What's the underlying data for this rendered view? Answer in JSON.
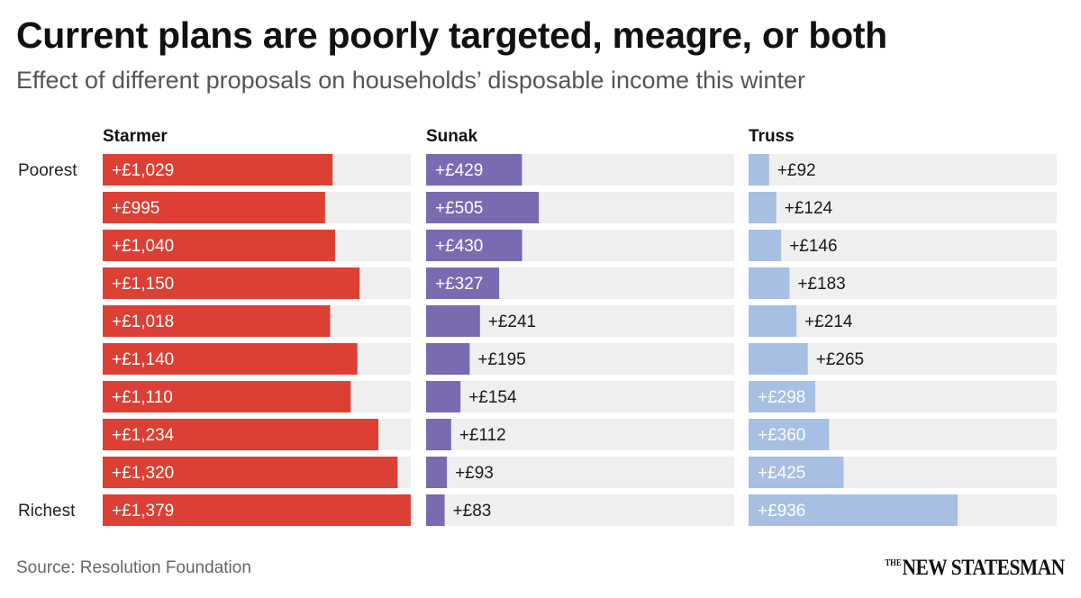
{
  "title": "Current plans are poorly targeted, meagre, or both",
  "subtitle": "Effect of different proposals on households’ disposable income this winter",
  "source": "Source: Resolution Foundation",
  "brand": {
    "small": "THE",
    "main": "NEW STATESMAN"
  },
  "colors": {
    "track": "#efefef",
    "starmer": "#dc3f33",
    "sunak": "#7a6aaf",
    "truss": "#a7bfe2"
  },
  "chart_data": {
    "type": "bar",
    "orientation": "horizontal",
    "categories": [
      "Poorest",
      "",
      "",
      "",
      "",
      "",
      "",
      "",
      "",
      "Richest"
    ],
    "xlim": [
      0,
      1379
    ],
    "series": [
      {
        "name": "Starmer",
        "color": "#dc3f33",
        "values": [
          1029,
          995,
          1040,
          1150,
          1018,
          1140,
          1110,
          1234,
          1320,
          1379
        ],
        "labels": [
          "+£1,029",
          "+£995",
          "+£1,040",
          "+£1,150",
          "+£1,018",
          "+£1,140",
          "+£1,110",
          "+£1,234",
          "+£1,320",
          "+£1,379"
        ]
      },
      {
        "name": "Sunak",
        "color": "#7a6aaf",
        "values": [
          429,
          505,
          430,
          327,
          241,
          195,
          154,
          112,
          93,
          83
        ],
        "labels": [
          "+£429",
          "+£505",
          "+£430",
          "+£327",
          "+£241",
          "+£195",
          "+£154",
          "+£112",
          "+£93",
          "+£83"
        ]
      },
      {
        "name": "Truss",
        "color": "#a7bfe2",
        "values": [
          92,
          124,
          146,
          183,
          214,
          265,
          298,
          360,
          425,
          936
        ],
        "labels": [
          "+£92",
          "+£124",
          "+£146",
          "+£183",
          "+£214",
          "+£265",
          "+£298",
          "+£360",
          "+£425",
          "+£936"
        ]
      }
    ]
  }
}
